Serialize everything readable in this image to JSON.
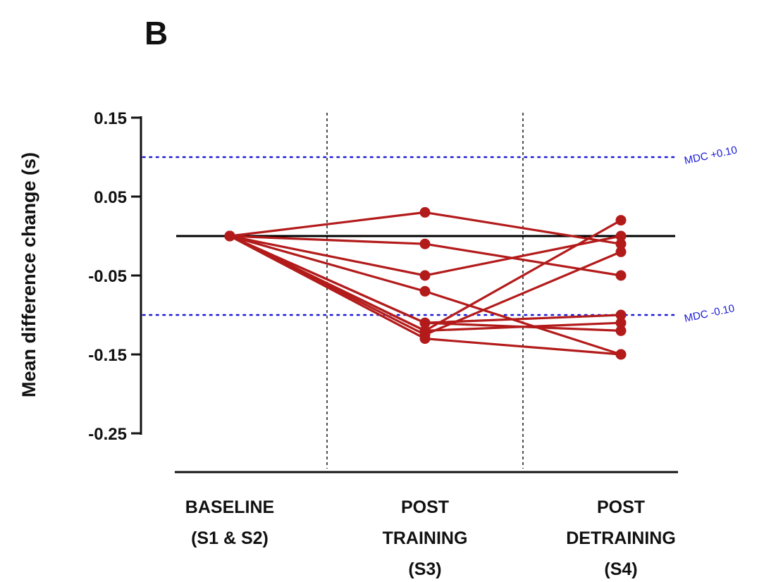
{
  "panel_label": "B",
  "chart_data": {
    "type": "line",
    "ylabel": "Mean difference change (s)",
    "ylim": [
      -0.25,
      0.15
    ],
    "yticks": [
      "0.15",
      "0.05",
      "-0.05",
      "-0.15",
      "-0.25"
    ],
    "ytick_values": [
      0.15,
      0.05,
      -0.05,
      -0.15,
      -0.25
    ],
    "categories": [
      [
        "BASELINE",
        "(S1 & S2)"
      ],
      [
        "POST",
        "TRAINING",
        "(S3)"
      ],
      [
        "POST",
        "DETRAINING",
        "(S4)"
      ]
    ],
    "reference_lines": [
      {
        "label": "MDC +0.10",
        "value": 0.1,
        "color": "#1a1ad6",
        "style": "dotted"
      },
      {
        "label": "MDC -0.10",
        "value": -0.1,
        "color": "#1a1ad6",
        "style": "dotted"
      },
      {
        "label": "",
        "value": 0.0,
        "color": "#000000",
        "style": "solid"
      }
    ],
    "series_color": "#b31b1b",
    "series": [
      {
        "values": [
          0.0,
          0.03,
          -0.01
        ]
      },
      {
        "values": [
          0.0,
          -0.01,
          -0.05
        ]
      },
      {
        "values": [
          0.0,
          -0.05,
          0.0
        ]
      },
      {
        "values": [
          0.0,
          -0.07,
          -0.15
        ]
      },
      {
        "values": [
          0.0,
          -0.11,
          -0.1
        ]
      },
      {
        "values": [
          0.0,
          -0.12,
          0.02
        ]
      },
      {
        "values": [
          0.0,
          -0.11,
          -0.12
        ]
      },
      {
        "values": [
          0.0,
          -0.12,
          -0.11
        ]
      },
      {
        "values": [
          0.0,
          -0.13,
          -0.15
        ]
      },
      {
        "values": [
          0.0,
          -0.125,
          -0.02
        ]
      }
    ],
    "grid": false
  }
}
